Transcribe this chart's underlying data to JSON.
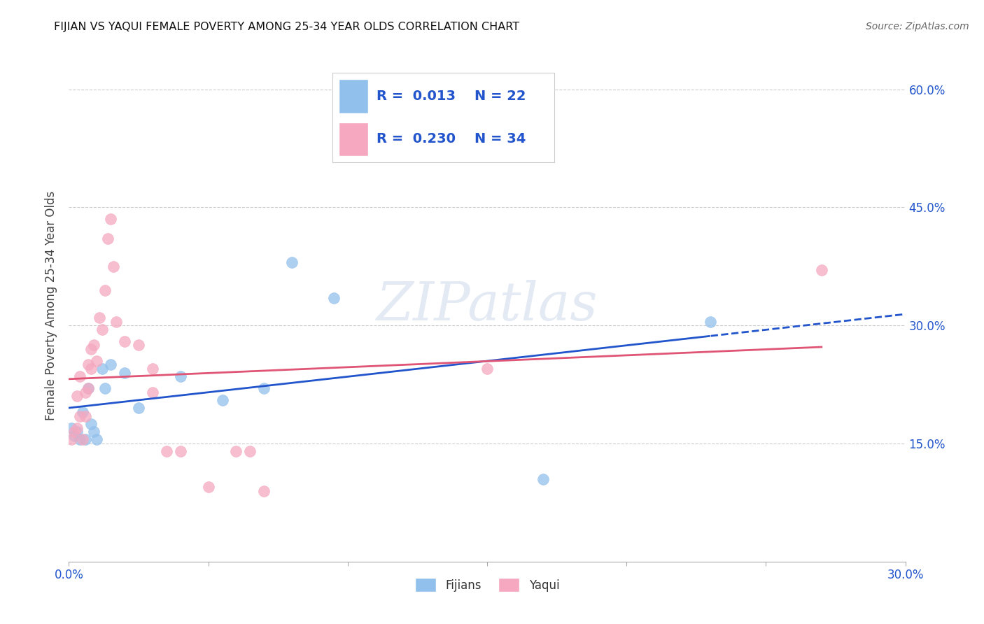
{
  "title": "FIJIAN VS YAQUI FEMALE POVERTY AMONG 25-34 YEAR OLDS CORRELATION CHART",
  "source": "Source: ZipAtlas.com",
  "ylabel": "Female Poverty Among 25-34 Year Olds",
  "xlim": [
    0.0,
    0.3
  ],
  "ylim": [
    0.0,
    0.65
  ],
  "yticks": [
    0.15,
    0.3,
    0.45,
    0.6
  ],
  "ytick_labels": [
    "15.0%",
    "30.0%",
    "45.0%",
    "60.0%"
  ],
  "xticks": [
    0.0,
    0.05,
    0.1,
    0.15,
    0.2,
    0.25,
    0.3
  ],
  "xtick_labels": [
    "0.0%",
    "",
    "",
    "",
    "",
    "",
    "30.0%"
  ],
  "fijians_color": "#92C0EC",
  "yaqui_color": "#F5A8BF",
  "fijians_line_color": "#2255CC",
  "yaqui_line_color": "#E05575",
  "legend_color": "#2255CC",
  "fijians_R": 0.013,
  "fijians_N": 22,
  "yaqui_R": 0.23,
  "yaqui_N": 34,
  "fijians_x": [
    0.001,
    0.002,
    0.003,
    0.004,
    0.005,
    0.006,
    0.007,
    0.008,
    0.009,
    0.01,
    0.012,
    0.013,
    0.015,
    0.02,
    0.025,
    0.04,
    0.055,
    0.07,
    0.08,
    0.095,
    0.17,
    0.23
  ],
  "fijians_y": [
    0.17,
    0.16,
    0.165,
    0.155,
    0.19,
    0.155,
    0.22,
    0.175,
    0.165,
    0.155,
    0.245,
    0.22,
    0.25,
    0.24,
    0.195,
    0.235,
    0.205,
    0.22,
    0.38,
    0.335,
    0.105,
    0.305
  ],
  "yaqui_x": [
    0.001,
    0.002,
    0.003,
    0.003,
    0.004,
    0.004,
    0.005,
    0.006,
    0.006,
    0.007,
    0.007,
    0.008,
    0.008,
    0.009,
    0.01,
    0.011,
    0.012,
    0.013,
    0.014,
    0.015,
    0.016,
    0.017,
    0.02,
    0.025,
    0.03,
    0.03,
    0.035,
    0.04,
    0.05,
    0.06,
    0.065,
    0.07,
    0.15,
    0.27
  ],
  "yaqui_y": [
    0.155,
    0.165,
    0.21,
    0.17,
    0.185,
    0.235,
    0.155,
    0.185,
    0.215,
    0.22,
    0.25,
    0.245,
    0.27,
    0.275,
    0.255,
    0.31,
    0.295,
    0.345,
    0.41,
    0.435,
    0.375,
    0.305,
    0.28,
    0.275,
    0.215,
    0.245,
    0.14,
    0.14,
    0.095,
    0.14,
    0.14,
    0.09,
    0.245,
    0.37
  ],
  "watermark": "ZIPatlas",
  "bg_color": "#FFFFFF",
  "grid_color": "#CCCCCC",
  "axis_tick_color": "#2255CC",
  "title_color": "#111111",
  "ylabel_color": "#444444"
}
